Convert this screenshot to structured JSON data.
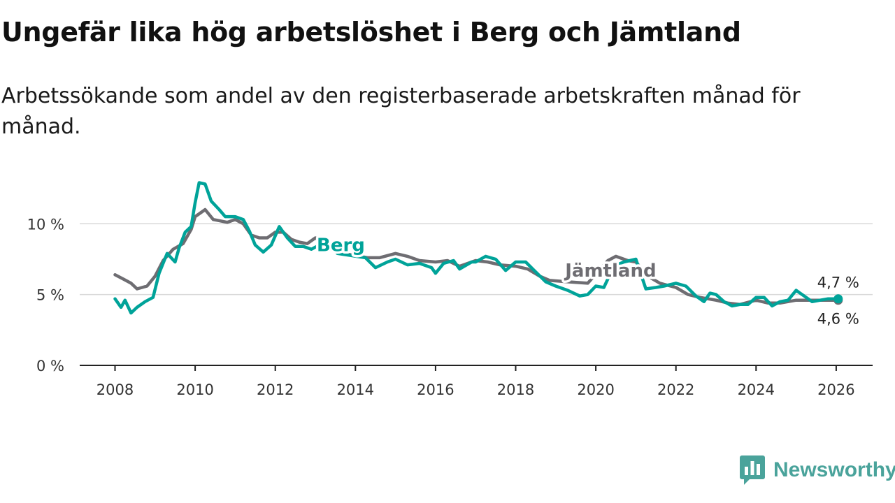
{
  "header": {
    "title": "Ungefär lika hög arbetslöshet i Berg och Jämtland",
    "subtitle": "Arbetssökande som andel av den registerbaserade arbetskraften månad för månad."
  },
  "logo": {
    "text": "Newsworthy",
    "icon": "bar-chart-badge-icon",
    "color": "#4aa39b"
  },
  "chart_data": {
    "type": "line",
    "title": "Ungefär lika hög arbetslöshet i Berg och Jämtland",
    "xlabel": "",
    "ylabel": "",
    "x_ticks": [
      "2008",
      "2010",
      "2012",
      "2014",
      "2016",
      "2018",
      "2020",
      "2022",
      "2024",
      "2026"
    ],
    "y_ticks": [
      {
        "value": 0,
        "label": "0 %"
      },
      {
        "value": 5,
        "label": "5 %"
      },
      {
        "value": 10,
        "label": "10 %"
      }
    ],
    "xlim": [
      2006.8,
      2027.1
    ],
    "ylim": [
      0,
      11
    ],
    "grid": true,
    "series": [
      {
        "name": "Jämtland",
        "color": "#6e6d72",
        "label_anchor": [
          2019.2,
          6.7
        ],
        "end_label": "4,6 %",
        "points": [
          [
            2008.0,
            6.4
          ],
          [
            2008.2,
            6.1
          ],
          [
            2008.4,
            5.8
          ],
          [
            2008.55,
            5.4
          ],
          [
            2008.8,
            5.6
          ],
          [
            2009.0,
            6.3
          ],
          [
            2009.2,
            7.4
          ],
          [
            2009.45,
            8.2
          ],
          [
            2009.7,
            8.6
          ],
          [
            2009.9,
            9.6
          ],
          [
            2010.0,
            10.5
          ],
          [
            2010.25,
            11.0
          ],
          [
            2010.45,
            10.3
          ],
          [
            2010.8,
            10.1
          ],
          [
            2011.0,
            10.3
          ],
          [
            2011.2,
            10.0
          ],
          [
            2011.4,
            9.2
          ],
          [
            2011.6,
            9.0
          ],
          [
            2011.8,
            9.0
          ],
          [
            2012.0,
            9.4
          ],
          [
            2012.2,
            9.4
          ],
          [
            2012.4,
            8.9
          ],
          [
            2012.6,
            8.7
          ],
          [
            2012.8,
            8.6
          ],
          [
            2013.0,
            9.0
          ],
          [
            2013.2,
            8.8
          ],
          [
            2013.45,
            8.3
          ],
          [
            2013.7,
            7.9
          ],
          [
            2014.3,
            7.6
          ],
          [
            2014.6,
            7.6
          ],
          [
            2015.0,
            7.9
          ],
          [
            2015.3,
            7.7
          ],
          [
            2015.6,
            7.4
          ],
          [
            2016.0,
            7.3
          ],
          [
            2016.3,
            7.4
          ],
          [
            2016.6,
            7.0
          ],
          [
            2017.0,
            7.4
          ],
          [
            2017.3,
            7.3
          ],
          [
            2017.6,
            7.1
          ],
          [
            2018.0,
            7.0
          ],
          [
            2018.3,
            6.8
          ],
          [
            2018.6,
            6.3
          ],
          [
            2018.85,
            6.0
          ],
          [
            2019.3,
            5.9
          ],
          [
            2019.8,
            5.8
          ],
          [
            2020.3,
            7.4
          ],
          [
            2020.5,
            7.7
          ],
          [
            2020.8,
            7.4
          ],
          [
            2021.0,
            7.3
          ],
          [
            2021.3,
            6.3
          ],
          [
            2021.6,
            5.8
          ],
          [
            2022.0,
            5.5
          ],
          [
            2022.3,
            5.0
          ],
          [
            2022.6,
            4.8
          ],
          [
            2023.0,
            4.6
          ],
          [
            2023.3,
            4.4
          ],
          [
            2023.6,
            4.3
          ],
          [
            2024.0,
            4.6
          ],
          [
            2024.3,
            4.4
          ],
          [
            2024.6,
            4.4
          ],
          [
            2025.0,
            4.6
          ],
          [
            2025.3,
            4.6
          ],
          [
            2025.6,
            4.6
          ],
          [
            2026.0,
            4.6
          ],
          [
            2026.05,
            4.6
          ]
        ]
      },
      {
        "name": "Berg",
        "color": "#00a399",
        "label_anchor": [
          2013.0,
          8.5
        ],
        "end_label": "4,7 %",
        "points": [
          [
            2008.0,
            4.7
          ],
          [
            2008.15,
            4.1
          ],
          [
            2008.25,
            4.6
          ],
          [
            2008.4,
            3.7
          ],
          [
            2008.55,
            4.1
          ],
          [
            2008.75,
            4.5
          ],
          [
            2008.95,
            4.8
          ],
          [
            2009.1,
            6.5
          ],
          [
            2009.3,
            7.9
          ],
          [
            2009.5,
            7.3
          ],
          [
            2009.6,
            8.3
          ],
          [
            2009.75,
            9.4
          ],
          [
            2009.9,
            9.8
          ],
          [
            2010.0,
            11.5
          ],
          [
            2010.1,
            12.9
          ],
          [
            2010.25,
            12.8
          ],
          [
            2010.4,
            11.6
          ],
          [
            2010.6,
            11.0
          ],
          [
            2010.75,
            10.5
          ],
          [
            2011.0,
            10.5
          ],
          [
            2011.2,
            10.3
          ],
          [
            2011.35,
            9.5
          ],
          [
            2011.5,
            8.5
          ],
          [
            2011.7,
            8.0
          ],
          [
            2011.9,
            8.5
          ],
          [
            2012.1,
            9.8
          ],
          [
            2012.3,
            9.0
          ],
          [
            2012.5,
            8.4
          ],
          [
            2012.7,
            8.4
          ],
          [
            2012.9,
            8.2
          ],
          [
            2013.1,
            8.5
          ],
          [
            2013.3,
            8.7
          ],
          [
            2013.55,
            7.9
          ],
          [
            2014.25,
            7.6
          ],
          [
            2014.5,
            6.9
          ],
          [
            2014.8,
            7.3
          ],
          [
            2015.0,
            7.5
          ],
          [
            2015.3,
            7.1
          ],
          [
            2015.6,
            7.2
          ],
          [
            2015.9,
            6.9
          ],
          [
            2016.0,
            6.5
          ],
          [
            2016.2,
            7.2
          ],
          [
            2016.45,
            7.4
          ],
          [
            2016.6,
            6.8
          ],
          [
            2016.9,
            7.3
          ],
          [
            2017.0,
            7.3
          ],
          [
            2017.25,
            7.7
          ],
          [
            2017.5,
            7.5
          ],
          [
            2017.75,
            6.7
          ],
          [
            2018.0,
            7.3
          ],
          [
            2018.25,
            7.3
          ],
          [
            2018.5,
            6.6
          ],
          [
            2018.75,
            5.9
          ],
          [
            2019.0,
            5.6
          ],
          [
            2019.3,
            5.3
          ],
          [
            2019.6,
            4.9
          ],
          [
            2019.8,
            5.0
          ],
          [
            2020.0,
            5.6
          ],
          [
            2020.2,
            5.5
          ],
          [
            2020.45,
            7.0
          ],
          [
            2020.7,
            7.3
          ],
          [
            2021.0,
            7.5
          ],
          [
            2021.25,
            5.4
          ],
          [
            2021.5,
            5.5
          ],
          [
            2021.7,
            5.6
          ],
          [
            2022.0,
            5.8
          ],
          [
            2022.25,
            5.6
          ],
          [
            2022.5,
            4.9
          ],
          [
            2022.7,
            4.5
          ],
          [
            2022.85,
            5.1
          ],
          [
            2023.0,
            5.0
          ],
          [
            2023.2,
            4.5
          ],
          [
            2023.4,
            4.2
          ],
          [
            2023.6,
            4.3
          ],
          [
            2023.8,
            4.3
          ],
          [
            2024.0,
            4.8
          ],
          [
            2024.2,
            4.8
          ],
          [
            2024.4,
            4.2
          ],
          [
            2024.6,
            4.5
          ],
          [
            2024.8,
            4.6
          ],
          [
            2025.0,
            5.3
          ],
          [
            2025.2,
            4.9
          ],
          [
            2025.4,
            4.5
          ],
          [
            2025.6,
            4.6
          ],
          [
            2025.8,
            4.7
          ],
          [
            2026.0,
            4.7
          ],
          [
            2026.05,
            4.7
          ]
        ]
      }
    ]
  }
}
